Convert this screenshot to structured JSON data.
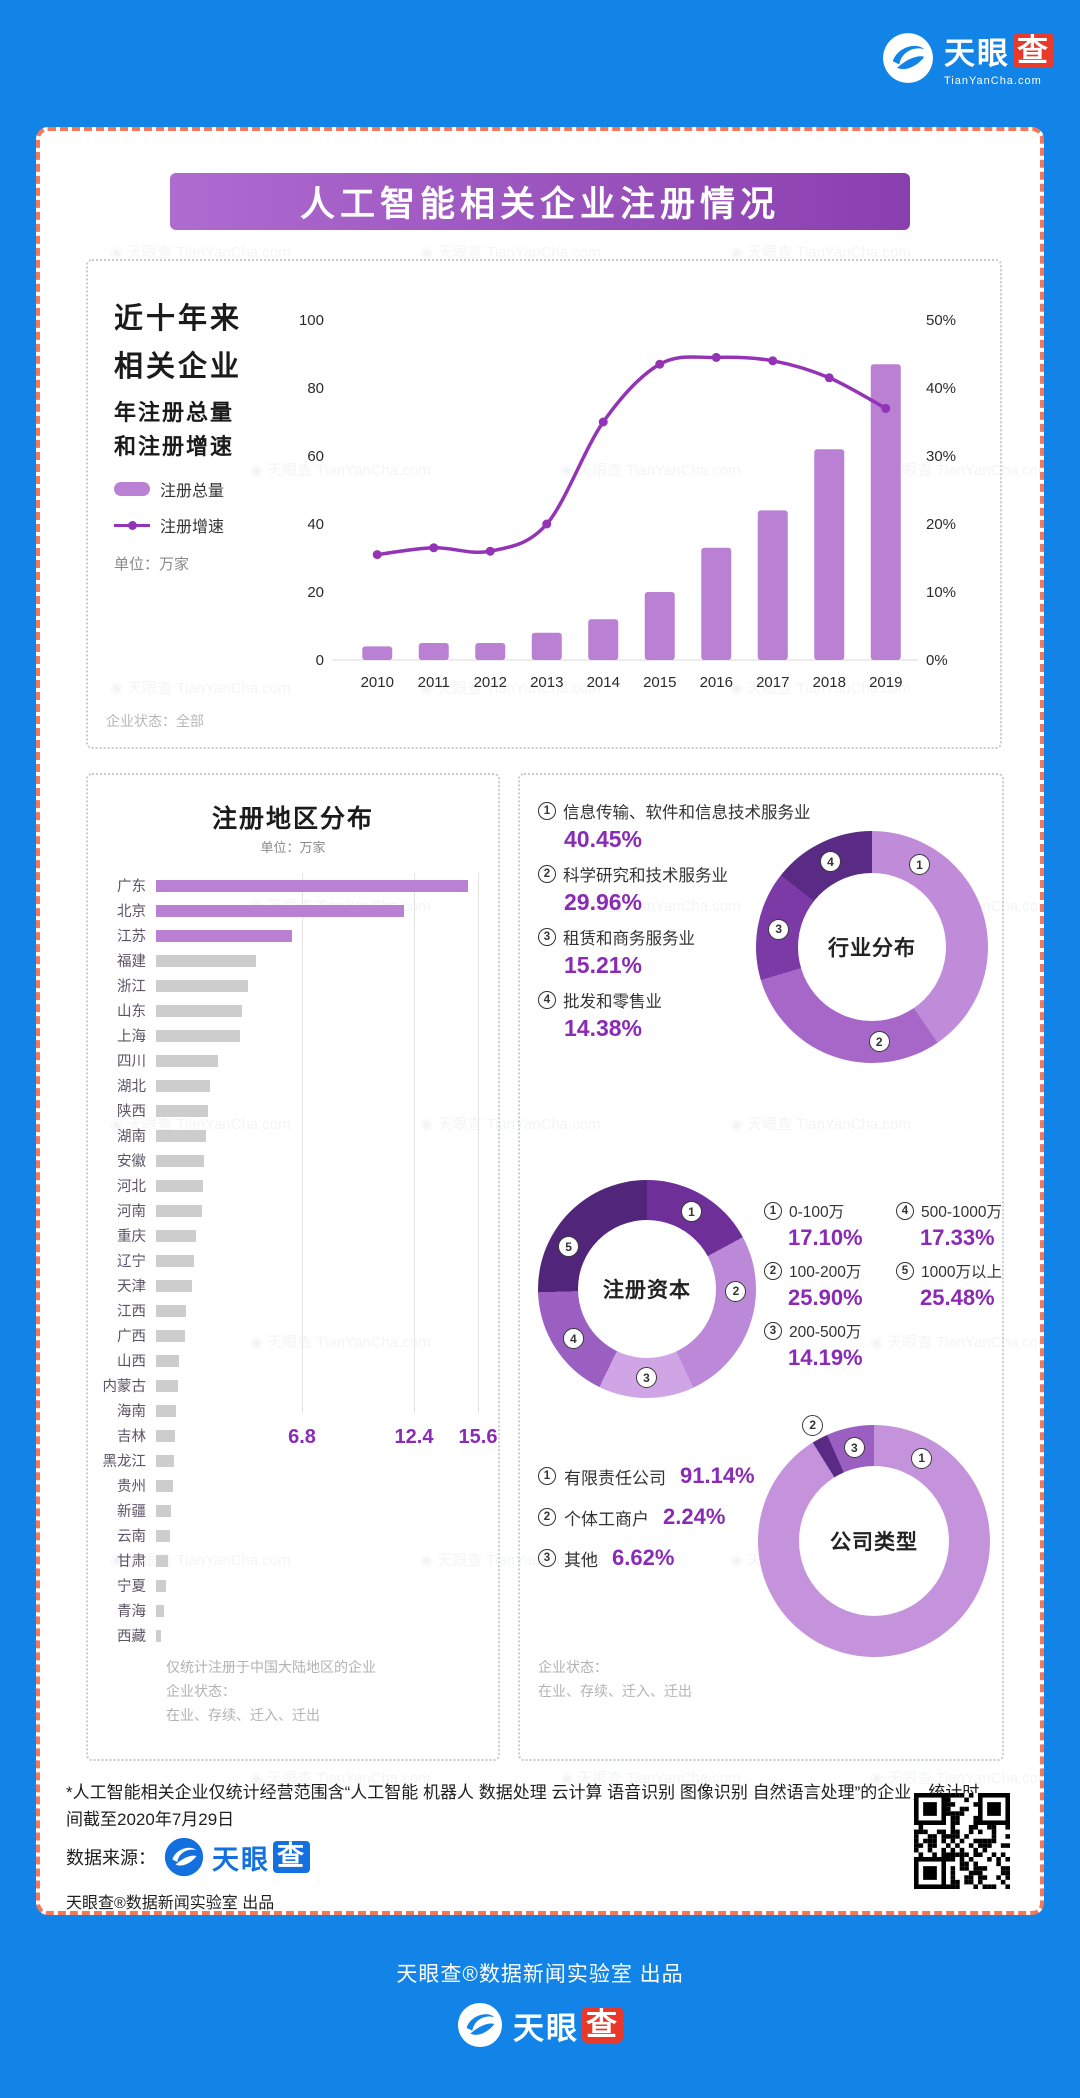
{
  "brand": {
    "name_part1": "天眼",
    "name_part2": "查",
    "domain": "TianYanCha.com",
    "watermark": "天眼查 TianYanCha.com"
  },
  "header": {
    "title": "人工智能相关企业注册情况"
  },
  "trend_section": {
    "headline": [
      "近十年来",
      "相关企业",
      "年注册总量",
      "和注册增速"
    ],
    "legend": [
      {
        "label": "注册总量"
      },
      {
        "label": "注册增速"
      }
    ],
    "unit": "单位：万家",
    "status": "企业状态：全部"
  },
  "region_section": {
    "unit": "单位：万家",
    "note": [
      "仅统计注册于中国大陆地区的企业",
      "企业状态：",
      "在业、存续、迁入、迁出"
    ]
  },
  "breakdown_section": {
    "status": [
      "企业状态：",
      "在业、存续、迁入、迁出"
    ]
  },
  "footer": {
    "footnote": "*人工智能相关企业仅统计经营范围含“人工智能 机器人 数据处理 云计算 语音识别 图像识别 自然语言处理”的企业，统计时间截至2020年7月29日",
    "source_label": "数据来源：",
    "lab_credit": "天眼查®数据新闻实验室 出品",
    "bottom_credit": "天眼查®数据新闻实验室 出品"
  },
  "colors": {
    "background_blue": "#1283E7",
    "card_border_coral": "#F4775C",
    "title_gradient": [
      "#AE6BD0",
      "#8A3FAE"
    ],
    "bar_fill": "#BA80D4",
    "line_stroke": "#9333B5",
    "gray_bar": "#CDCDCD",
    "accent_pct": "#8A2BB5",
    "logo_red": "#E8392B",
    "logo_blue": "#1470DE"
  },
  "chart_data": [
    {
      "id": "trend",
      "type": "bar",
      "title": "近十年来相关企业年注册总量和注册增速",
      "categories": [
        "2010",
        "2011",
        "2012",
        "2013",
        "2014",
        "2015",
        "2016",
        "2017",
        "2018",
        "2019"
      ],
      "series": [
        {
          "name": "注册总量",
          "type": "bar",
          "unit": "万家",
          "values": [
            4,
            5,
            5,
            8,
            12,
            20,
            33,
            44,
            62,
            87
          ]
        },
        {
          "name": "注册增速",
          "type": "line",
          "unit": "%",
          "values": [
            15.5,
            16.5,
            16,
            20,
            35,
            43.5,
            44.5,
            44,
            41.5,
            37
          ]
        }
      ],
      "left_axis": {
        "min": 0,
        "max": 100,
        "ticks": [
          0,
          20,
          40,
          60,
          80,
          100
        ]
      },
      "right_axis": {
        "min": 0,
        "max": 50,
        "ticks": [
          "0%",
          "10%",
          "20%",
          "30%",
          "40%",
          "50%"
        ]
      },
      "legend_position": "left",
      "grid": false
    },
    {
      "id": "regions",
      "type": "bar",
      "orientation": "horizontal",
      "title": "注册地区分布",
      "unit": "万家",
      "highlight_count": 3,
      "gridlines": [
        6.8,
        12.4,
        15.6
      ],
      "categories": [
        "广东",
        "北京",
        "江苏",
        "福建",
        "浙江",
        "山东",
        "上海",
        "四川",
        "湖北",
        "陕西",
        "湖南",
        "安徽",
        "河北",
        "河南",
        "重庆",
        "辽宁",
        "天津",
        "江西",
        "广西",
        "山西",
        "内蒙古",
        "海南",
        "吉林",
        "黑龙江",
        "贵州",
        "新疆",
        "云南",
        "甘肃",
        "宁夏",
        "青海",
        "西藏"
      ],
      "values": [
        15.6,
        12.4,
        6.8,
        5.0,
        4.6,
        4.3,
        4.2,
        3.1,
        2.7,
        2.6,
        2.5,
        2.4,
        2.35,
        2.3,
        2.0,
        1.9,
        1.8,
        1.5,
        1.45,
        1.15,
        1.1,
        1.0,
        0.95,
        0.9,
        0.85,
        0.75,
        0.7,
        0.6,
        0.5,
        0.4,
        0.25
      ]
    },
    {
      "id": "industry",
      "type": "pie",
      "title": "行业分布",
      "slices": [
        {
          "num": "1",
          "label": "信息传输、软件和信息技术服务业",
          "pct": "40.45%",
          "value": 40.45,
          "color": "#C08BD9"
        },
        {
          "num": "2",
          "label": "科学研究和技术服务业",
          "pct": "29.96%",
          "value": 29.96,
          "color": "#A767C8"
        },
        {
          "num": "3",
          "label": "租赁和商务服务业",
          "pct": "15.21%",
          "value": 15.21,
          "color": "#7C3AA6"
        },
        {
          "num": "4",
          "label": "批发和零售业",
          "pct": "14.38%",
          "value": 14.38,
          "color": "#5A2B84"
        }
      ]
    },
    {
      "id": "capital",
      "type": "pie",
      "title": "注册资本",
      "slices": [
        {
          "num": "1",
          "label": "0-100万",
          "pct": "17.10%",
          "value": 17.1,
          "color": "#6F2F98"
        },
        {
          "num": "2",
          "label": "100-200万",
          "pct": "25.90%",
          "value": 25.9,
          "color": "#BC88D8"
        },
        {
          "num": "3",
          "label": "200-500万",
          "pct": "14.19%",
          "value": 14.19,
          "color": "#CFA5E6"
        },
        {
          "num": "4",
          "label": "500-1000万",
          "pct": "17.33%",
          "value": 17.33,
          "color": "#9B5FC2"
        },
        {
          "num": "5",
          "label": "1000万以上",
          "pct": "25.48%",
          "value": 25.48,
          "color": "#50257A"
        }
      ]
    },
    {
      "id": "company_type",
      "type": "pie",
      "title": "公司类型",
      "slices": [
        {
          "num": "1",
          "label": "有限责任公司",
          "pct": "91.14%",
          "value": 91.14,
          "color": "#C493DC"
        },
        {
          "num": "2",
          "label": "个体工商户",
          "pct": "2.24%",
          "value": 2.24,
          "color": "#5A2B84"
        },
        {
          "num": "3",
          "label": "其他",
          "pct": "6.62%",
          "value": 6.62,
          "color": "#9B5FC2"
        }
      ]
    }
  ]
}
